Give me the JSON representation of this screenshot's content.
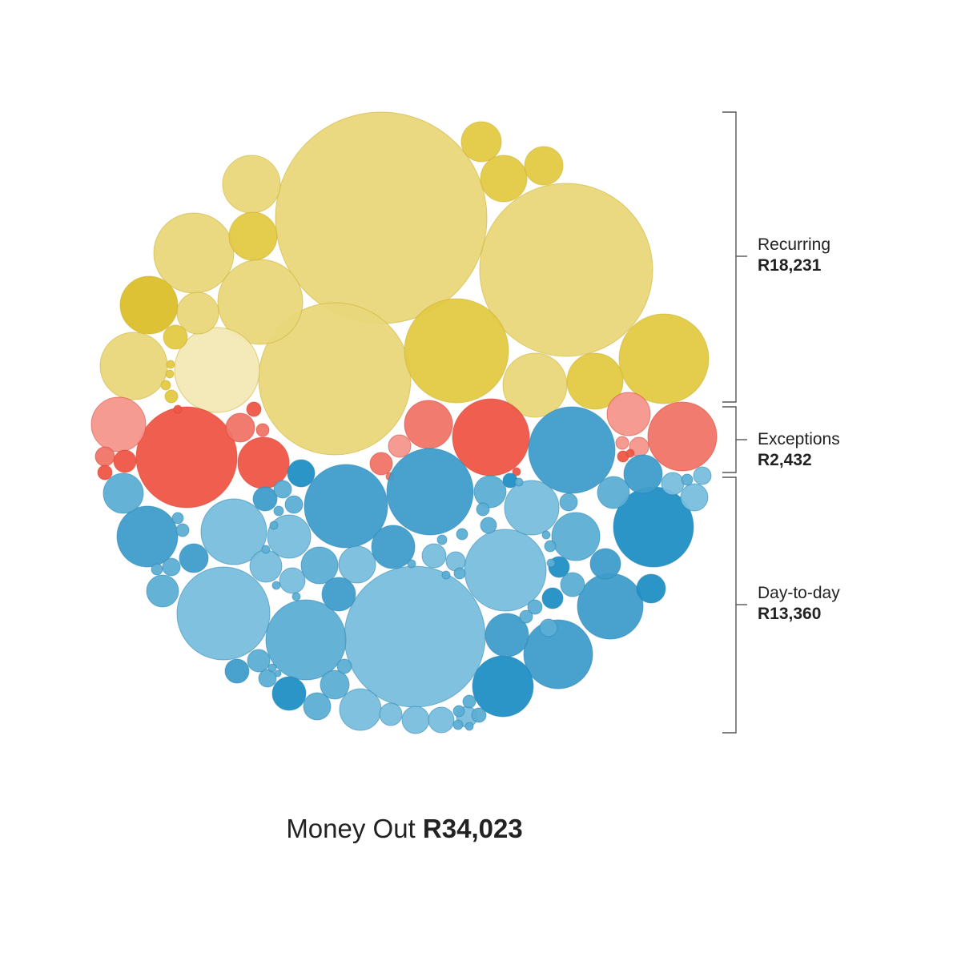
{
  "chart_data": {
    "type": "bubble-pack",
    "groups": [
      {
        "name": "Recurring",
        "amount": "R18,231",
        "value": 18231,
        "color": "#e3c840"
      },
      {
        "name": "Exceptions",
        "amount": "R2,432",
        "value": 2432,
        "color": "#ef5a48"
      },
      {
        "name": "Day-to-day",
        "amount": "R13,360",
        "value": 13360,
        "color": "#3a9ecb"
      }
    ],
    "total_label": "Money Out",
    "total_amount": "R34,023"
  }
}
